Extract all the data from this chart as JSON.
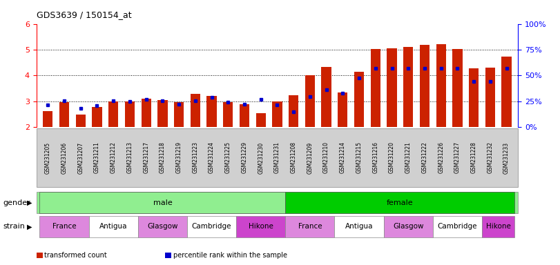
{
  "title": "GDS3639 / 150154_at",
  "samples": [
    "GSM231205",
    "GSM231206",
    "GSM231207",
    "GSM231211",
    "GSM231212",
    "GSM231213",
    "GSM231217",
    "GSM231218",
    "GSM231219",
    "GSM231223",
    "GSM231224",
    "GSM231225",
    "GSM231229",
    "GSM231230",
    "GSM231231",
    "GSM231208",
    "GSM231209",
    "GSM231210",
    "GSM231214",
    "GSM231215",
    "GSM231216",
    "GSM231220",
    "GSM231221",
    "GSM231222",
    "GSM231226",
    "GSM231227",
    "GSM231228",
    "GSM231232",
    "GSM231233"
  ],
  "red_values": [
    2.62,
    2.98,
    2.48,
    2.78,
    3.0,
    3.0,
    3.1,
    3.05,
    2.97,
    3.28,
    3.2,
    2.98,
    2.88,
    2.55,
    3.0,
    3.25,
    4.0,
    4.32,
    3.35,
    4.15,
    5.02,
    5.05,
    5.1,
    5.2,
    5.22,
    5.03,
    4.27,
    4.3,
    4.72
  ],
  "blue_values": [
    2.86,
    3.03,
    2.72,
    2.84,
    3.03,
    3.0,
    3.07,
    3.03,
    2.88,
    3.03,
    3.15,
    2.98,
    2.88,
    3.07,
    2.86,
    2.6,
    3.19,
    3.45,
    3.32,
    3.9,
    4.27,
    4.27,
    4.27,
    4.27,
    4.27,
    4.27,
    3.78,
    3.78,
    4.27
  ],
  "gender_groups": [
    {
      "label": "male",
      "start": 0,
      "end": 15,
      "color": "#90ee90"
    },
    {
      "label": "female",
      "start": 15,
      "end": 29,
      "color": "#00cc00"
    }
  ],
  "strain_groups": [
    {
      "label": "France",
      "start": 0,
      "end": 3,
      "color": "#dd88dd"
    },
    {
      "label": "Antigua",
      "start": 3,
      "end": 6,
      "color": "#ffffff"
    },
    {
      "label": "Glasgow",
      "start": 6,
      "end": 9,
      "color": "#dd88dd"
    },
    {
      "label": "Cambridge",
      "start": 9,
      "end": 12,
      "color": "#ffffff"
    },
    {
      "label": "Hikone",
      "start": 12,
      "end": 15,
      "color": "#cc44cc"
    },
    {
      "label": "France",
      "start": 15,
      "end": 18,
      "color": "#dd88dd"
    },
    {
      "label": "Antigua",
      "start": 18,
      "end": 21,
      "color": "#ffffff"
    },
    {
      "label": "Glasgow",
      "start": 21,
      "end": 24,
      "color": "#dd88dd"
    },
    {
      "label": "Cambridge",
      "start": 24,
      "end": 27,
      "color": "#ffffff"
    },
    {
      "label": "Hikone",
      "start": 27,
      "end": 29,
      "color": "#cc44cc"
    }
  ],
  "ymin": 2.0,
  "ymax": 6.0,
  "yticks_left": [
    2,
    3,
    4,
    5,
    6
  ],
  "yticks_right": [
    0,
    25,
    50,
    75,
    100
  ],
  "bar_color": "#cc2200",
  "dot_color": "#0000cc",
  "bar_width": 0.6,
  "gender_label": "gender",
  "strain_label": "strain",
  "legend_items": [
    {
      "color": "#cc2200",
      "label": "transformed count"
    },
    {
      "color": "#0000cc",
      "label": "percentile rank within the sample"
    }
  ]
}
